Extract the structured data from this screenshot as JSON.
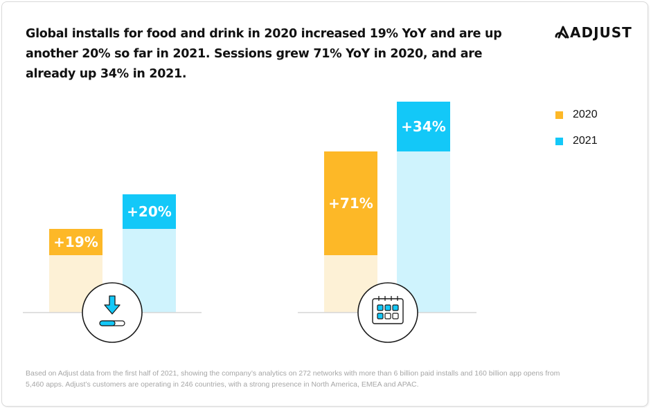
{
  "headline": "Global installs for food and drink in 2020 increased 19% YoY and are up another 20% so far in 2021. Sessions grew 71% YoY in 2020, and are already up 34% in 2021.",
  "brand": {
    "name": "ADJUST"
  },
  "colors": {
    "y2020": "#fdb827",
    "y2020_light": "#fdf1d6",
    "y2021": "#13c8f8",
    "y2021_light": "#cff3fd",
    "baseline": "#d6d6d6",
    "icon_stroke": "#1a1a1a"
  },
  "legend": [
    {
      "label": "2020",
      "color": "#fdb827"
    },
    {
      "label": "2021",
      "color": "#13c8f8"
    }
  ],
  "footnote": "Based on Adjust data from the first half of 2021, showing the company’s analytics on 272 networks with more than 6 billion paid installs and 160 billion app opens from 5,460 apps. Adjust’s customers are operating in 246 countries, with a strong presence in North America, EMEA and APAC.",
  "chart_data": {
    "type": "bar",
    "title": "Global installs for food and drink in 2020 increased 19% YoY and are up another 20% so far in 2021. Sessions grew 71% YoY in 2020, and are already up 34% in 2021.",
    "xlabel": "",
    "ylabel": "",
    "grid": false,
    "legend_position": "top-right",
    "categories": [
      "Installs",
      "Sessions"
    ],
    "category_icons": [
      "download-icon",
      "calendar-icon"
    ],
    "series": [
      {
        "name": "2020",
        "values": [
          19,
          71
        ],
        "labels": [
          "+19%",
          "+71%"
        ]
      },
      {
        "name": "2021",
        "values": [
          20,
          34
        ],
        "labels": [
          "+20%",
          "+34%"
        ]
      }
    ],
    "units": "% YoY growth"
  }
}
